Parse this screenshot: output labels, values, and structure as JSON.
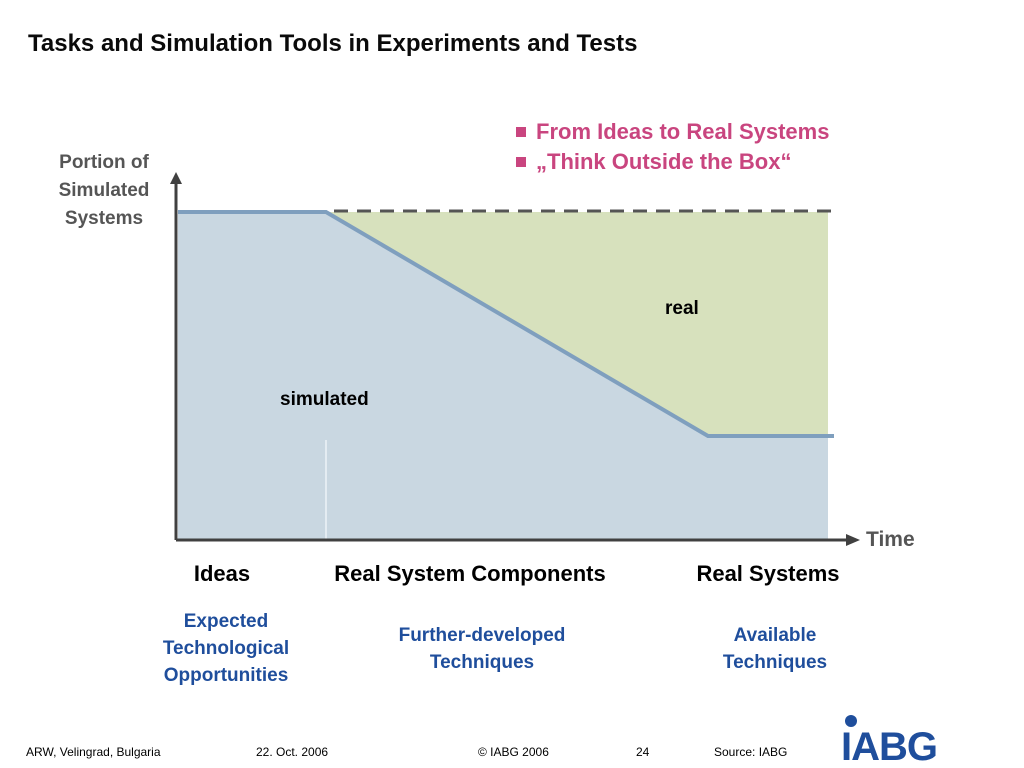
{
  "slide": {
    "title": "Tasks and Simulation Tools in Experiments and Tests",
    "bullets": [
      "From Ideas to Real Systems",
      "„Think Outside the Box“"
    ]
  },
  "diagram": {
    "y_axis_label": "Portion of Simulated Systems",
    "x_axis_label": "Time",
    "region_real": "real",
    "region_simulated": "simulated",
    "stages": [
      "Ideas",
      "Real System Components",
      "Real Systems"
    ],
    "techniques": [
      "Expected Technological Opportunities",
      "Further-developed Techniques",
      "Available Techniques"
    ],
    "colors": {
      "simulated_fill": "#c9d7e1",
      "real_fill": "#d7e1bd",
      "line": "#7f9fbe",
      "axis": "#404040",
      "bullet": "#c9457f",
      "technique_text": "#1f4e9c"
    }
  },
  "footer": {
    "location": "ARW, Velingrad, Bulgaria",
    "date": "22. Oct. 2006",
    "copyright": "© IABG 2006",
    "page": "24",
    "source": "Source: IABG"
  },
  "logo": {
    "text": "IABG",
    "color": "#1f4e9c"
  }
}
